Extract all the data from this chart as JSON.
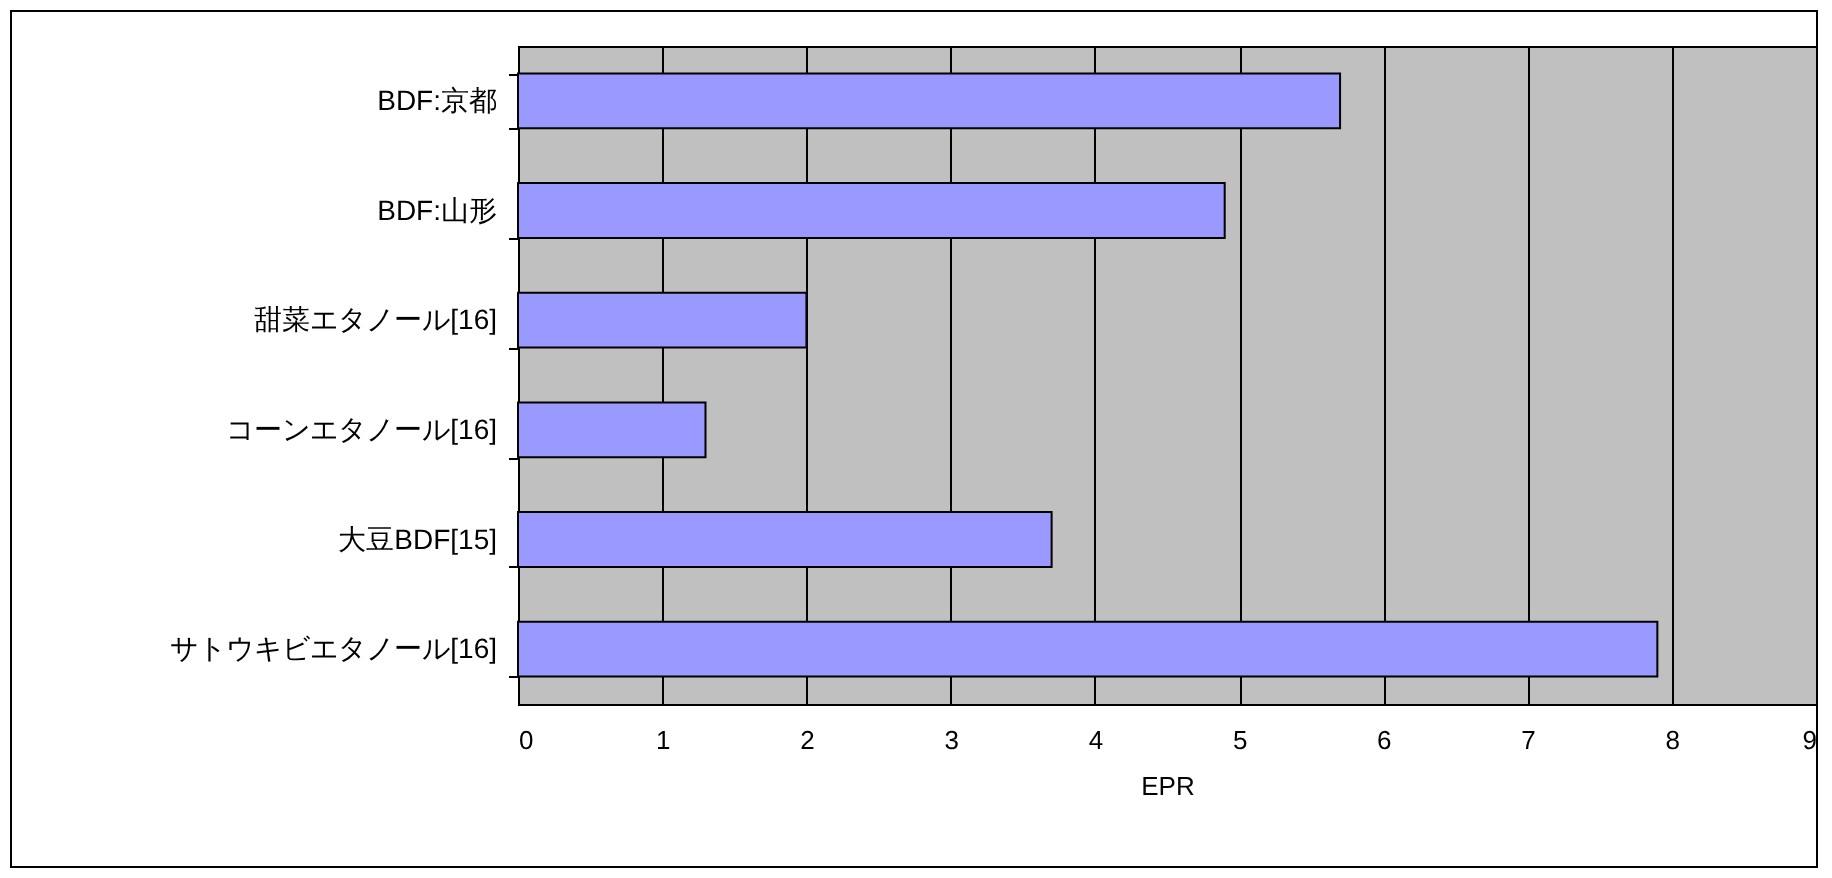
{
  "chart_data": {
    "type": "bar",
    "orientation": "horizontal",
    "xlabel": "EPR",
    "categories": [
      "BDF:京都",
      "BDF:山形",
      "甜菜エタノール[16]",
      "コーンエタノール[16]",
      "大豆BDF[15]",
      "サトウキビエタノール[16]"
    ],
    "values": [
      5.7,
      4.9,
      2.0,
      1.3,
      3.7,
      7.9
    ],
    "color": "#9999ff",
    "xlim": [
      0,
      9
    ],
    "xticks": [
      0,
      1,
      2,
      3,
      4,
      5,
      6,
      7,
      8,
      9
    ],
    "grid": "x"
  }
}
